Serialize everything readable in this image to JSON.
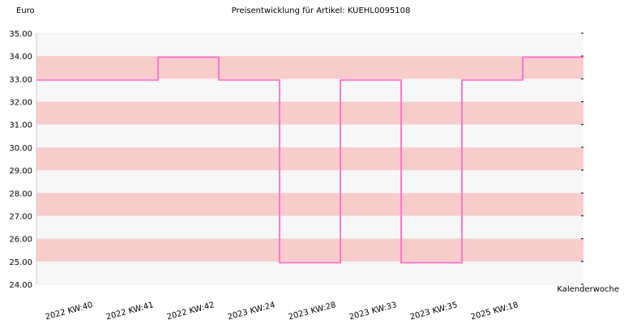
{
  "chart_data": {
    "type": "step",
    "title": "Preisentwicklung für Artikel: KUEHL0095108",
    "y_label": "Euro",
    "x_label": "Kalenderwoche",
    "categories": [
      "2022 KW:40",
      "2022 KW:41",
      "2022 KW:42",
      "2023 KW:24",
      "2023 KW:28",
      "2023 KW:33",
      "2023 KW:35",
      "2025 KW:18"
    ],
    "values": [
      32.95,
      33.95,
      32.95,
      24.95,
      32.95,
      24.95,
      32.95,
      33.95
    ],
    "color": "#ff77c8",
    "band_colors": [
      "#f7f7f7",
      "#f9cccc"
    ],
    "ylim": [
      24,
      35
    ],
    "yticks": [
      {
        "value": 24,
        "label": "24.00"
      },
      {
        "value": 25,
        "label": "25.00"
      },
      {
        "value": 26,
        "label": "26.00"
      },
      {
        "value": 27,
        "label": "27.00"
      },
      {
        "value": 28,
        "label": "28.00"
      },
      {
        "value": 29,
        "label": "29.00"
      },
      {
        "value": 30,
        "label": "30.00"
      },
      {
        "value": 31,
        "label": "31.00"
      },
      {
        "value": 32,
        "label": "32.00"
      },
      {
        "value": 33,
        "label": "33.00"
      },
      {
        "value": 34,
        "label": "34.00"
      },
      {
        "value": 35,
        "label": "35.00"
      }
    ]
  }
}
